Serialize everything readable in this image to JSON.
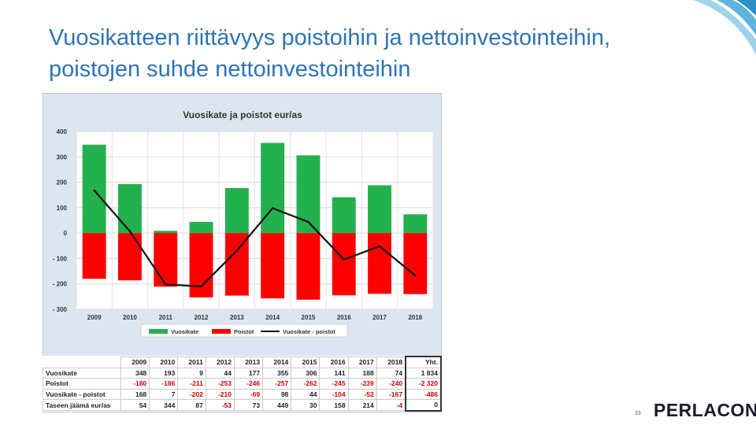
{
  "title_lines": [
    "Vuosikatteen riittävyys poistoihin ja nettoinvestointeihin,",
    "poistojen suhde nettoinvestointeihin"
  ],
  "colors": {
    "title": "#2e74b5",
    "vuosikate": "#22b14c",
    "poistot": "#ff0000",
    "line": "#111111"
  },
  "chart_data": {
    "type": "bar",
    "title": "Vuosikate ja poistot eur/as",
    "categories": [
      "2009",
      "2010",
      "2011",
      "2012",
      "2013",
      "2014",
      "2015",
      "2016",
      "2017",
      "2018"
    ],
    "y_ticks": [
      "400",
      "300",
      "200",
      "100",
      "0",
      "- 100",
      "- 200",
      "- 300"
    ],
    "y_tick_values": [
      400,
      300,
      200,
      100,
      0,
      -100,
      -200,
      -300
    ],
    "ylim": [
      -300,
      400
    ],
    "series": [
      {
        "name": "Vuosikate",
        "kind": "bar",
        "values": [
          348,
          193,
          9,
          44,
          177,
          355,
          306,
          141,
          188,
          74
        ]
      },
      {
        "name": "Poistot",
        "kind": "bar",
        "values": [
          -180,
          -186,
          -211,
          -253,
          -246,
          -257,
          -262,
          -245,
          -239,
          -240
        ]
      },
      {
        "name": "Vuosikate - poistot",
        "kind": "line",
        "values": [
          168,
          7,
          -202,
          -210,
          -69,
          98,
          44,
          -104,
          -52,
          -167
        ]
      }
    ],
    "legend_position": "bottom",
    "grid": true
  },
  "table": {
    "headers": [
      "2009",
      "2010",
      "2011",
      "2012",
      "2013",
      "2014",
      "2015",
      "2016",
      "2017",
      "2018",
      "Yht."
    ],
    "rows": [
      {
        "label": "Vuosikate",
        "values": [
          "348",
          "193",
          "9",
          "44",
          "177",
          "355",
          "306",
          "141",
          "188",
          "74",
          "1 834"
        ]
      },
      {
        "label": "Poistot",
        "values": [
          "-180",
          "-186",
          "-211",
          "-253",
          "-246",
          "-257",
          "-262",
          "-245",
          "-239",
          "-240",
          "-2 320"
        ]
      },
      {
        "label": "Vuosikate - poistot",
        "values": [
          "168",
          "7",
          "-202",
          "-210",
          "-69",
          "98",
          "44",
          "-104",
          "-52",
          "-167",
          "-486"
        ]
      },
      {
        "label": "Taseen jäämä eur/as",
        "values": [
          "54",
          "344",
          "87",
          "-53",
          "73",
          "449",
          "30",
          "158",
          "214",
          "-4",
          "0"
        ]
      }
    ]
  },
  "page_number": "33",
  "logo_text": "PERLACON"
}
